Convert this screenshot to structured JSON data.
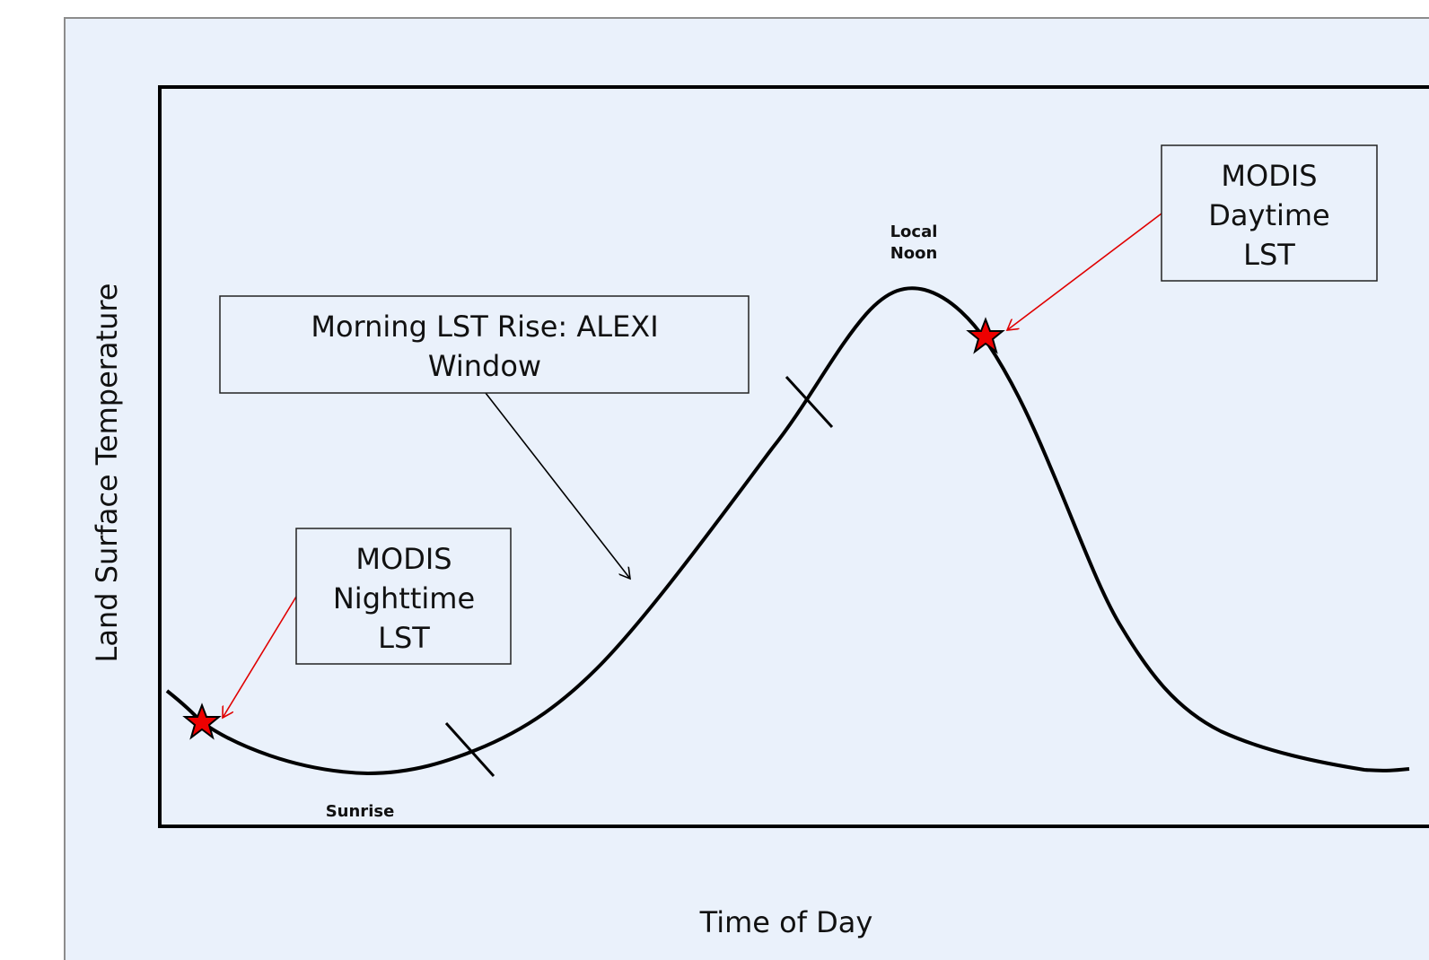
{
  "y_axis_label": "Land Surface Temperature",
  "x_axis_label": "Time of Day",
  "labels": {
    "morning_window": [
      "Morning LST Rise: ALEXI",
      "Window"
    ],
    "modis_nighttime": [
      "MODIS",
      "Nighttime",
      "LST"
    ],
    "modis_daytime": [
      "MODIS",
      "Daytime",
      "LST"
    ],
    "local_noon": [
      "Local",
      "Noon"
    ],
    "sunrise": "Sunrise"
  }
}
